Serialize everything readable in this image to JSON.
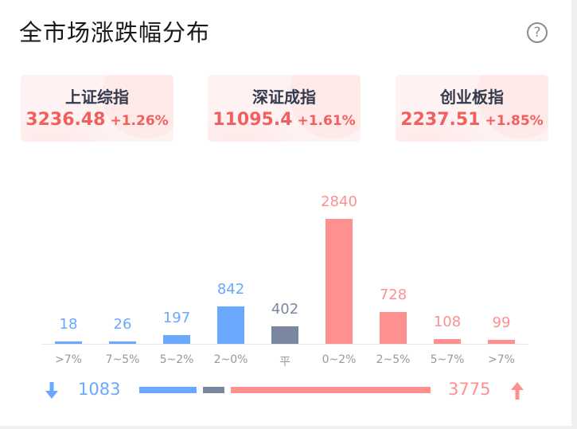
{
  "title": "全市场涨跌幅分布",
  "help_icon": "question-circle-icon",
  "indices": [
    {
      "name": "上证综指",
      "price": "3236.48",
      "change": "+1.26%"
    },
    {
      "name": "深证成指",
      "price": "11095.4",
      "change": "+1.61%"
    },
    {
      "name": "创业板指",
      "price": "2237.51",
      "change": "+1.85%"
    }
  ],
  "colors": {
    "down": "#6aa8ff",
    "flat": "#7a879e",
    "up": "#ff9090",
    "up_text": "#f15f5f"
  },
  "chart_data": {
    "type": "bar",
    "categories": [
      ">7%",
      "7~5%",
      "5~2%",
      "2~0%",
      "平",
      "0~2%",
      "2~5%",
      "5~7%",
      ">7%"
    ],
    "values": [
      18,
      26,
      197,
      842,
      402,
      2840,
      728,
      108,
      99
    ],
    "groups": [
      "down",
      "down",
      "down",
      "down",
      "flat",
      "up",
      "up",
      "up",
      "up"
    ],
    "ylim": [
      0,
      2840
    ]
  },
  "summary": {
    "down_count": "1083",
    "up_count": "3775",
    "down_icon": "arrow-down-icon",
    "up_icon": "arrow-up-icon"
  }
}
